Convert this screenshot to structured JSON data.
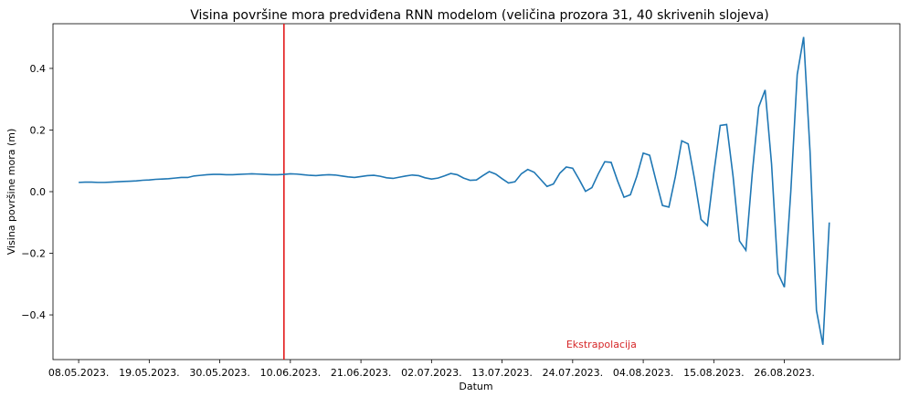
{
  "chart_data": {
    "type": "line",
    "title": "Visina površine mora predviđena RNN modelom (veličina prozora 31, 40 skrivenih slojeva)",
    "xlabel": "Datum",
    "ylabel": "Visina površine mora (m)",
    "ylim": [
      -0.545,
      0.545
    ],
    "xlim": [
      "2023-05-04",
      "2023-09-13"
    ],
    "grid": false,
    "x_ticks": [
      {
        "date": "2023-05-08",
        "label": "08.05.2023."
      },
      {
        "date": "2023-05-19",
        "label": "19.05.2023."
      },
      {
        "date": "2023-05-30",
        "label": "30.05.2023."
      },
      {
        "date": "2023-06-10",
        "label": "10.06.2023."
      },
      {
        "date": "2023-06-21",
        "label": "21.06.2023."
      },
      {
        "date": "2023-07-02",
        "label": "02.07.2023."
      },
      {
        "date": "2023-07-13",
        "label": "13.07.2023."
      },
      {
        "date": "2023-07-24",
        "label": "24.07.2023."
      },
      {
        "date": "2023-08-04",
        "label": "04.08.2023."
      },
      {
        "date": "2023-08-15",
        "label": "15.08.2023."
      },
      {
        "date": "2023-08-26",
        "label": "26.08.2023."
      }
    ],
    "y_ticks": [
      {
        "value": -0.4,
        "label": "−0.4"
      },
      {
        "value": -0.2,
        "label": "−0.2"
      },
      {
        "value": 0.0,
        "label": "0.0"
      },
      {
        "value": 0.2,
        "label": "0.2"
      },
      {
        "value": 0.4,
        "label": "0.4"
      }
    ],
    "series": [
      {
        "color": "#1f77b4",
        "start_date": "2023-05-08",
        "step_days": 1,
        "values": [
          0.03,
          0.031,
          0.031,
          0.03,
          0.03,
          0.031,
          0.032,
          0.033,
          0.034,
          0.035,
          0.037,
          0.038,
          0.04,
          0.041,
          0.042,
          0.044,
          0.046,
          0.046,
          0.051,
          0.053,
          0.055,
          0.056,
          0.056,
          0.055,
          0.055,
          0.056,
          0.057,
          0.058,
          0.057,
          0.056,
          0.055,
          0.055,
          0.056,
          0.058,
          0.057,
          0.055,
          0.053,
          0.052,
          0.054,
          0.055,
          0.054,
          0.051,
          0.048,
          0.046,
          0.049,
          0.052,
          0.053,
          0.05,
          0.045,
          0.043,
          0.047,
          0.051,
          0.054,
          0.052,
          0.045,
          0.041,
          0.044,
          0.051,
          0.059,
          0.055,
          0.044,
          0.037,
          0.038,
          0.052,
          0.065,
          0.057,
          0.042,
          0.028,
          0.032,
          0.058,
          0.072,
          0.063,
          0.04,
          0.017,
          0.025,
          0.06,
          0.08,
          0.076,
          0.04,
          0.001,
          0.013,
          0.058,
          0.097,
          0.095,
          0.035,
          -0.018,
          -0.01,
          0.05,
          0.125,
          0.118,
          0.035,
          -0.045,
          -0.05,
          0.048,
          0.165,
          0.155,
          0.04,
          -0.09,
          -0.11,
          0.06,
          0.215,
          0.218,
          0.05,
          -0.16,
          -0.19,
          0.06,
          0.275,
          0.33,
          0.09,
          -0.265,
          -0.31,
          0.0,
          0.38,
          0.502,
          0.13,
          -0.385,
          -0.497,
          -0.1
        ]
      }
    ],
    "vertical_line": {
      "date": "2023-06-09",
      "color": "#e31a1c"
    },
    "annotations": [
      {
        "text": "Ekstrapolacija",
        "date": "2023-07-23",
        "value": -0.495,
        "color": "#d62728"
      }
    ]
  }
}
